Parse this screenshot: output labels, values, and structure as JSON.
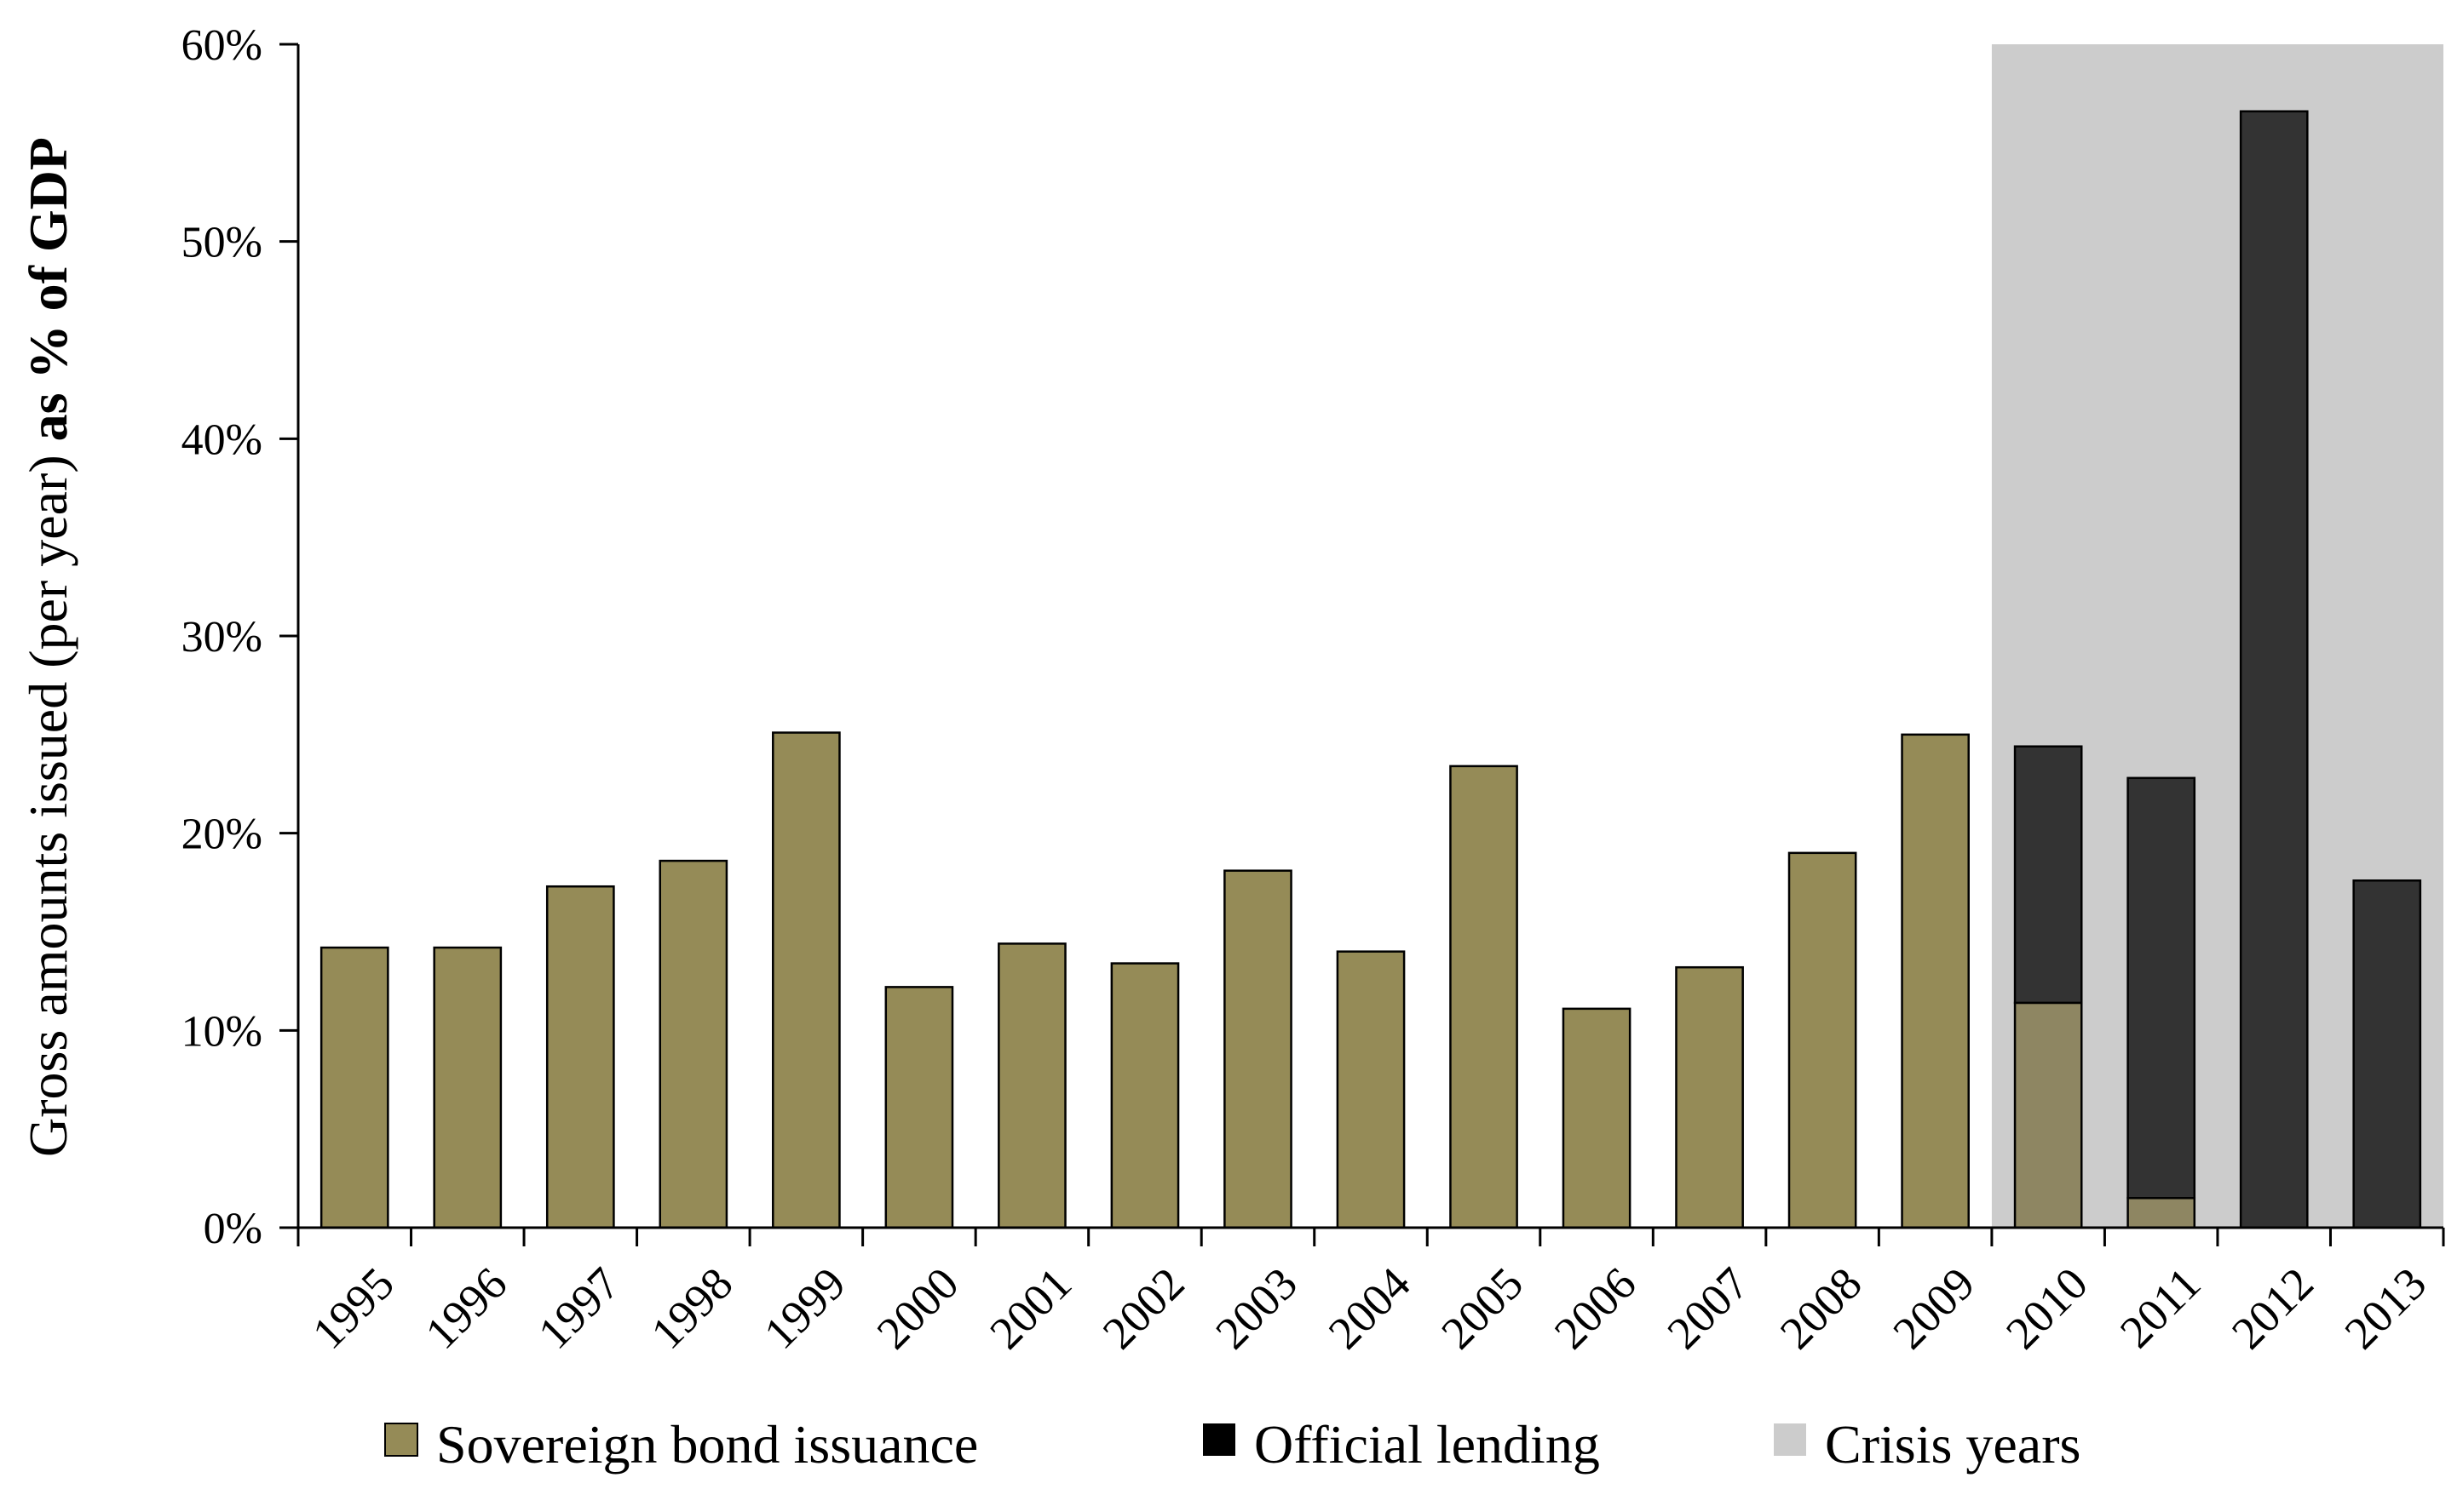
{
  "chart_data": {
    "type": "bar",
    "stacked": true,
    "categories": [
      "1995",
      "1996",
      "1997",
      "1998",
      "1999",
      "2000",
      "2001",
      "2002",
      "2003",
      "2004",
      "2005",
      "2006",
      "2007",
      "2008",
      "2009",
      "2010",
      "2011",
      "2012",
      "2013"
    ],
    "series": [
      {
        "name": "Sovereign bond issuance",
        "color": "#958b57",
        "values": [
          14.2,
          14.2,
          17.3,
          18.6,
          25.1,
          12.2,
          14.4,
          13.4,
          18.1,
          14.0,
          23.4,
          11.1,
          13.2,
          19.0,
          25.0,
          11.4,
          1.5,
          0,
          0
        ]
      },
      {
        "name": "Official lending",
        "color": "#333333",
        "values": [
          0,
          0,
          0,
          0,
          0,
          0,
          0,
          0,
          0,
          0,
          0,
          0,
          0,
          0,
          0,
          13.0,
          21.3,
          56.6,
          17.6
        ]
      }
    ],
    "highlight": {
      "name": "Crisis years",
      "color": "#cccccc",
      "categories": [
        "2010",
        "2011",
        "2012",
        "2013"
      ]
    },
    "crisis_bond_color": "#8e8662",
    "ylabel_regular": "Gross amounts issued (per year) ",
    "ylabel_bold": "as % of GDP",
    "ylim": [
      0,
      60
    ],
    "yticks": [
      0,
      10,
      20,
      30,
      40,
      50,
      60
    ],
    "ytick_labels": [
      "0%",
      "10%",
      "20%",
      "30%",
      "40%",
      "50%",
      "60%"
    ],
    "legend_position": "bottom",
    "grid": false
  }
}
